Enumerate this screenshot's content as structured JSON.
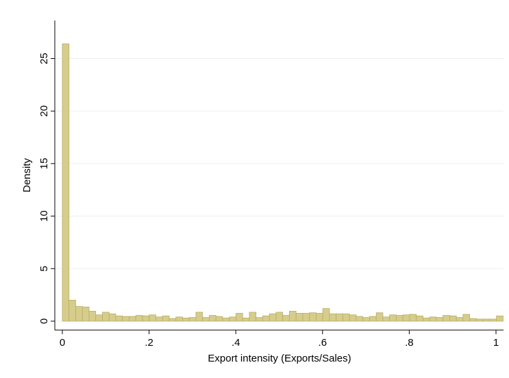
{
  "chart_data": {
    "type": "bar",
    "title": "",
    "xlabel": "Export intensity (Exports/Sales)",
    "ylabel": "Density",
    "xlim": [
      0,
      1
    ],
    "ylim": [
      0,
      26.4
    ],
    "x_ticks": [
      {
        "value": 0,
        "label": "0"
      },
      {
        "value": 0.2,
        "label": ".2"
      },
      {
        "value": 0.4,
        "label": ".4"
      },
      {
        "value": 0.6,
        "label": ".6"
      },
      {
        "value": 0.8,
        "label": ".8"
      },
      {
        "value": 1,
        "label": "1"
      }
    ],
    "y_ticks": [
      {
        "value": 0,
        "label": "0"
      },
      {
        "value": 5,
        "label": "5"
      },
      {
        "value": 10,
        "label": "10"
      },
      {
        "value": 15,
        "label": "15"
      },
      {
        "value": 20,
        "label": "20"
      },
      {
        "value": 25,
        "label": "25"
      }
    ],
    "grid": true,
    "bin_width": 0.0154,
    "bin_start": 0.0,
    "values": [
      26.4,
      2.0,
      1.4,
      1.35,
      0.95,
      0.6,
      0.85,
      0.7,
      0.5,
      0.45,
      0.45,
      0.55,
      0.5,
      0.6,
      0.4,
      0.5,
      0.25,
      0.4,
      0.3,
      0.35,
      0.85,
      0.35,
      0.55,
      0.45,
      0.3,
      0.4,
      0.75,
      0.3,
      0.85,
      0.35,
      0.5,
      0.7,
      0.85,
      0.55,
      0.95,
      0.75,
      0.75,
      0.8,
      0.75,
      1.2,
      0.7,
      0.7,
      0.7,
      0.6,
      0.45,
      0.35,
      0.45,
      0.8,
      0.4,
      0.6,
      0.55,
      0.6,
      0.65,
      0.5,
      0.3,
      0.4,
      0.35,
      0.55,
      0.5,
      0.35,
      0.65,
      0.25,
      0.2,
      0.2,
      0.2,
      0.5
    ],
    "colors": {
      "bar_fill": "#d6cd8c",
      "bar_stroke": "#b8ad62",
      "grid": "#eaf0f1",
      "axis": "#000000"
    }
  }
}
